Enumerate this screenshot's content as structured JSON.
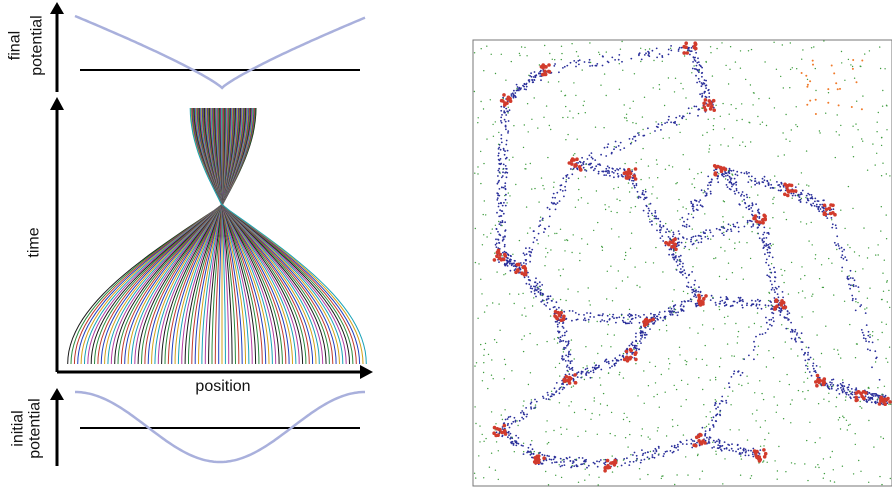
{
  "diagram": {
    "final_label_1": "final",
    "final_label_2": "potential",
    "time_label": "time",
    "position_label": "position",
    "initial_label_1": "initial",
    "initial_label_2": "potential"
  },
  "colors": {
    "potential_curve": "#a9b0dc",
    "axis": "#000000",
    "trajectory_palette": [
      "#1a1a1a",
      "#2b8a3e",
      "#c0392b",
      "#1f3fbf",
      "#d4a017",
      "#17a2b8",
      "#b03aa0"
    ],
    "sim_blue": "#2a2f9a",
    "sim_green": "#3d9b3d",
    "sim_red": "#d23b2c",
    "sim_orange": "#f07a2a"
  },
  "simulation": {
    "description_visible_text": ""
  }
}
